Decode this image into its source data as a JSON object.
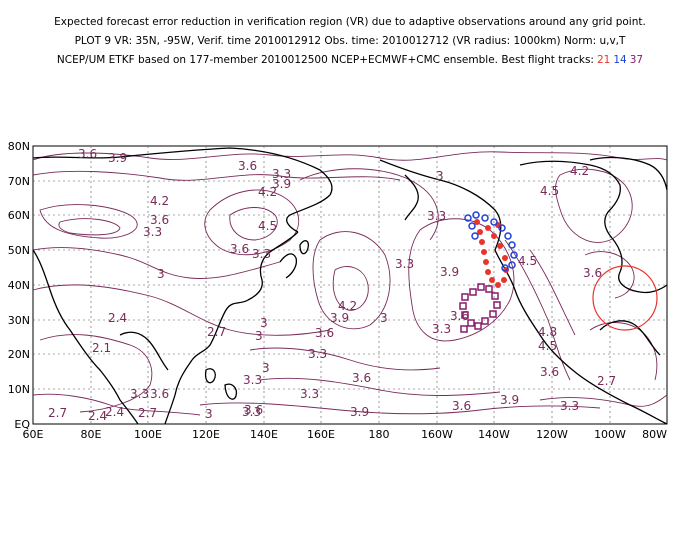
{
  "title": {
    "line1": "Expected forecast error reduction in verification region (VR) due to adaptive observations around any grid point.",
    "line2": "PLOT 9 VR: 35N, -95W, Verif. time 2010012912 Obs. time: 2010012712 (VR radius: 1000km) Norm: u,v,T",
    "line3": "NCEP/UM ETKF based on 177-member 2010012500 NCEP+ECMWF+CMC ensemble. Best flight tracks:",
    "tracks": [
      {
        "id": "21",
        "color": "#e8342c"
      },
      {
        "id": "14",
        "color": "#1f3fd6"
      },
      {
        "id": "37",
        "color": "#8a1a6a"
      }
    ]
  },
  "map": {
    "lat_labels": [
      "80N",
      "70N",
      "60N",
      "50N",
      "40N",
      "30N",
      "20N",
      "10N",
      "EQ"
    ],
    "lon_labels": [
      "60E",
      "80E",
      "100E",
      "120E",
      "140E",
      "160E",
      "180",
      "160W",
      "140W",
      "120W",
      "100W",
      "80W"
    ],
    "contour_color": "#7a2a5a",
    "contour_labels": [
      {
        "text": "3.6"
      },
      {
        "text": "3.9"
      },
      {
        "text": "4.2"
      },
      {
        "text": "3.6"
      },
      {
        "text": "3.3"
      },
      {
        "text": "3.6"
      },
      {
        "text": "3.3"
      },
      {
        "text": "4.5"
      },
      {
        "text": "4.2"
      },
      {
        "text": "3.9"
      },
      {
        "text": "3.6"
      },
      {
        "text": "3.3"
      },
      {
        "text": "3"
      },
      {
        "text": "3"
      },
      {
        "text": "2.4"
      },
      {
        "text": "2.1"
      },
      {
        "text": "2.7"
      },
      {
        "text": "3"
      },
      {
        "text": "3"
      },
      {
        "text": "3.3"
      },
      {
        "text": "3.6"
      },
      {
        "text": "3.9"
      },
      {
        "text": "4.2"
      },
      {
        "text": "3.3"
      },
      {
        "text": "3.3"
      },
      {
        "text": "3.6"
      },
      {
        "text": "3"
      },
      {
        "text": "3.3"
      },
      {
        "text": "3.9"
      },
      {
        "text": "3.6"
      },
      {
        "text": "3.3"
      },
      {
        "text": "3.6"
      },
      {
        "text": "3"
      },
      {
        "text": "4.5"
      },
      {
        "text": "4.2"
      },
      {
        "text": "4.5"
      },
      {
        "text": "4.8"
      },
      {
        "text": "4.5"
      },
      {
        "text": "3.6"
      },
      {
        "text": "2.7"
      },
      {
        "text": "3.3"
      },
      {
        "text": "3.6"
      },
      {
        "text": "3.3"
      },
      {
        "text": "3.9"
      },
      {
        "text": "2.7"
      },
      {
        "text": "2.4"
      },
      {
        "text": "2.4"
      },
      {
        "text": "2.7"
      },
      {
        "text": "3.3"
      },
      {
        "text": "3.6"
      },
      {
        "text": "3.9"
      },
      {
        "text": "3.6"
      },
      {
        "text": "3.3"
      },
      {
        "text": "3"
      }
    ],
    "verification_region": {
      "lat": 35,
      "lon": -95,
      "radius_km": 1000,
      "color": "#e8342c"
    }
  }
}
